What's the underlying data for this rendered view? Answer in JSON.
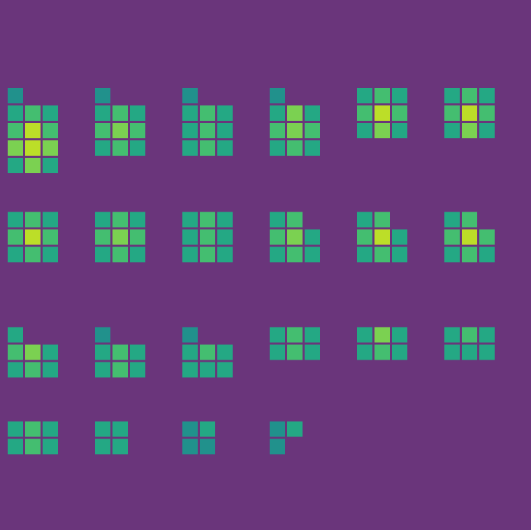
{
  "chart_data": {
    "type": "heatmap",
    "zlim": [
      0,
      10
    ],
    "tick_labels": false,
    "panels": [
      {
        "cells": [
          [
            5,
            null,
            null
          ],
          [
            6,
            7,
            6
          ],
          [
            7,
            9,
            7
          ],
          [
            8,
            9,
            8
          ],
          [
            6,
            8,
            6
          ]
        ]
      },
      {
        "cells": [
          [
            5,
            null,
            null
          ],
          [
            6,
            7,
            6
          ],
          [
            7,
            8,
            7
          ],
          [
            6,
            7,
            6
          ]
        ]
      },
      {
        "cells": [
          [
            5,
            null,
            null
          ],
          [
            6,
            7,
            6
          ],
          [
            6,
            7,
            6
          ],
          [
            6,
            7,
            6
          ]
        ]
      },
      {
        "cells": [
          [
            5,
            null,
            null
          ],
          [
            6,
            8,
            6
          ],
          [
            7,
            8,
            7
          ],
          [
            6,
            7,
            6
          ]
        ]
      },
      {
        "cells": [
          [
            6,
            7,
            6
          ],
          [
            7,
            9,
            7
          ],
          [
            6,
            8,
            6
          ]
        ]
      },
      {
        "cells": [
          [
            6,
            7,
            6
          ],
          [
            7,
            9,
            7
          ],
          [
            6,
            8,
            6
          ]
        ]
      },
      {
        "cells": [
          [
            6,
            7,
            6
          ],
          [
            7,
            9,
            7
          ],
          [
            6,
            7,
            6
          ]
        ]
      },
      {
        "cells": [
          [
            6,
            7,
            6
          ],
          [
            7,
            8,
            7
          ],
          [
            6,
            7,
            6
          ]
        ]
      },
      {
        "cells": [
          [
            6,
            7,
            6
          ],
          [
            6,
            7,
            6
          ],
          [
            6,
            7,
            6
          ]
        ]
      },
      {
        "cells": [
          [
            6,
            7,
            null
          ],
          [
            7,
            8,
            6
          ],
          [
            6,
            7,
            6
          ]
        ]
      },
      {
        "cells": [
          [
            6,
            7,
            null
          ],
          [
            7,
            9,
            6
          ],
          [
            6,
            7,
            6
          ]
        ]
      },
      {
        "cells": [
          [
            6,
            7,
            null
          ],
          [
            7,
            9,
            7
          ],
          [
            6,
            7,
            6
          ]
        ]
      },
      {
        "cells": [
          [
            6,
            null,
            null
          ],
          [
            7,
            8,
            6
          ],
          [
            6,
            7,
            6
          ]
        ]
      },
      {
        "cells": [
          [
            5,
            null,
            null
          ],
          [
            6,
            7,
            6
          ],
          [
            6,
            7,
            6
          ]
        ]
      },
      {
        "cells": [
          [
            5,
            null,
            null
          ],
          [
            6,
            7,
            6
          ],
          [
            6,
            6,
            6
          ]
        ]
      },
      {
        "cells": [
          [
            6,
            7,
            6
          ],
          [
            6,
            7,
            6
          ]
        ]
      },
      {
        "cells": [
          [
            6,
            8,
            6
          ],
          [
            6,
            7,
            6
          ]
        ]
      },
      {
        "cells": [
          [
            6,
            7,
            6
          ],
          [
            6,
            6,
            6
          ]
        ]
      },
      {
        "cells": [
          [
            6,
            7,
            6
          ],
          [
            6,
            7,
            6
          ]
        ]
      },
      {
        "cells": [
          [
            6,
            6,
            null
          ],
          [
            6,
            6,
            null
          ]
        ]
      },
      {
        "cells": [
          [
            5,
            6,
            null
          ],
          [
            5,
            5,
            null
          ]
        ]
      },
      {
        "cells": [
          [
            5,
            6,
            null
          ],
          [
            5,
            null,
            null
          ]
        ]
      }
    ]
  }
}
